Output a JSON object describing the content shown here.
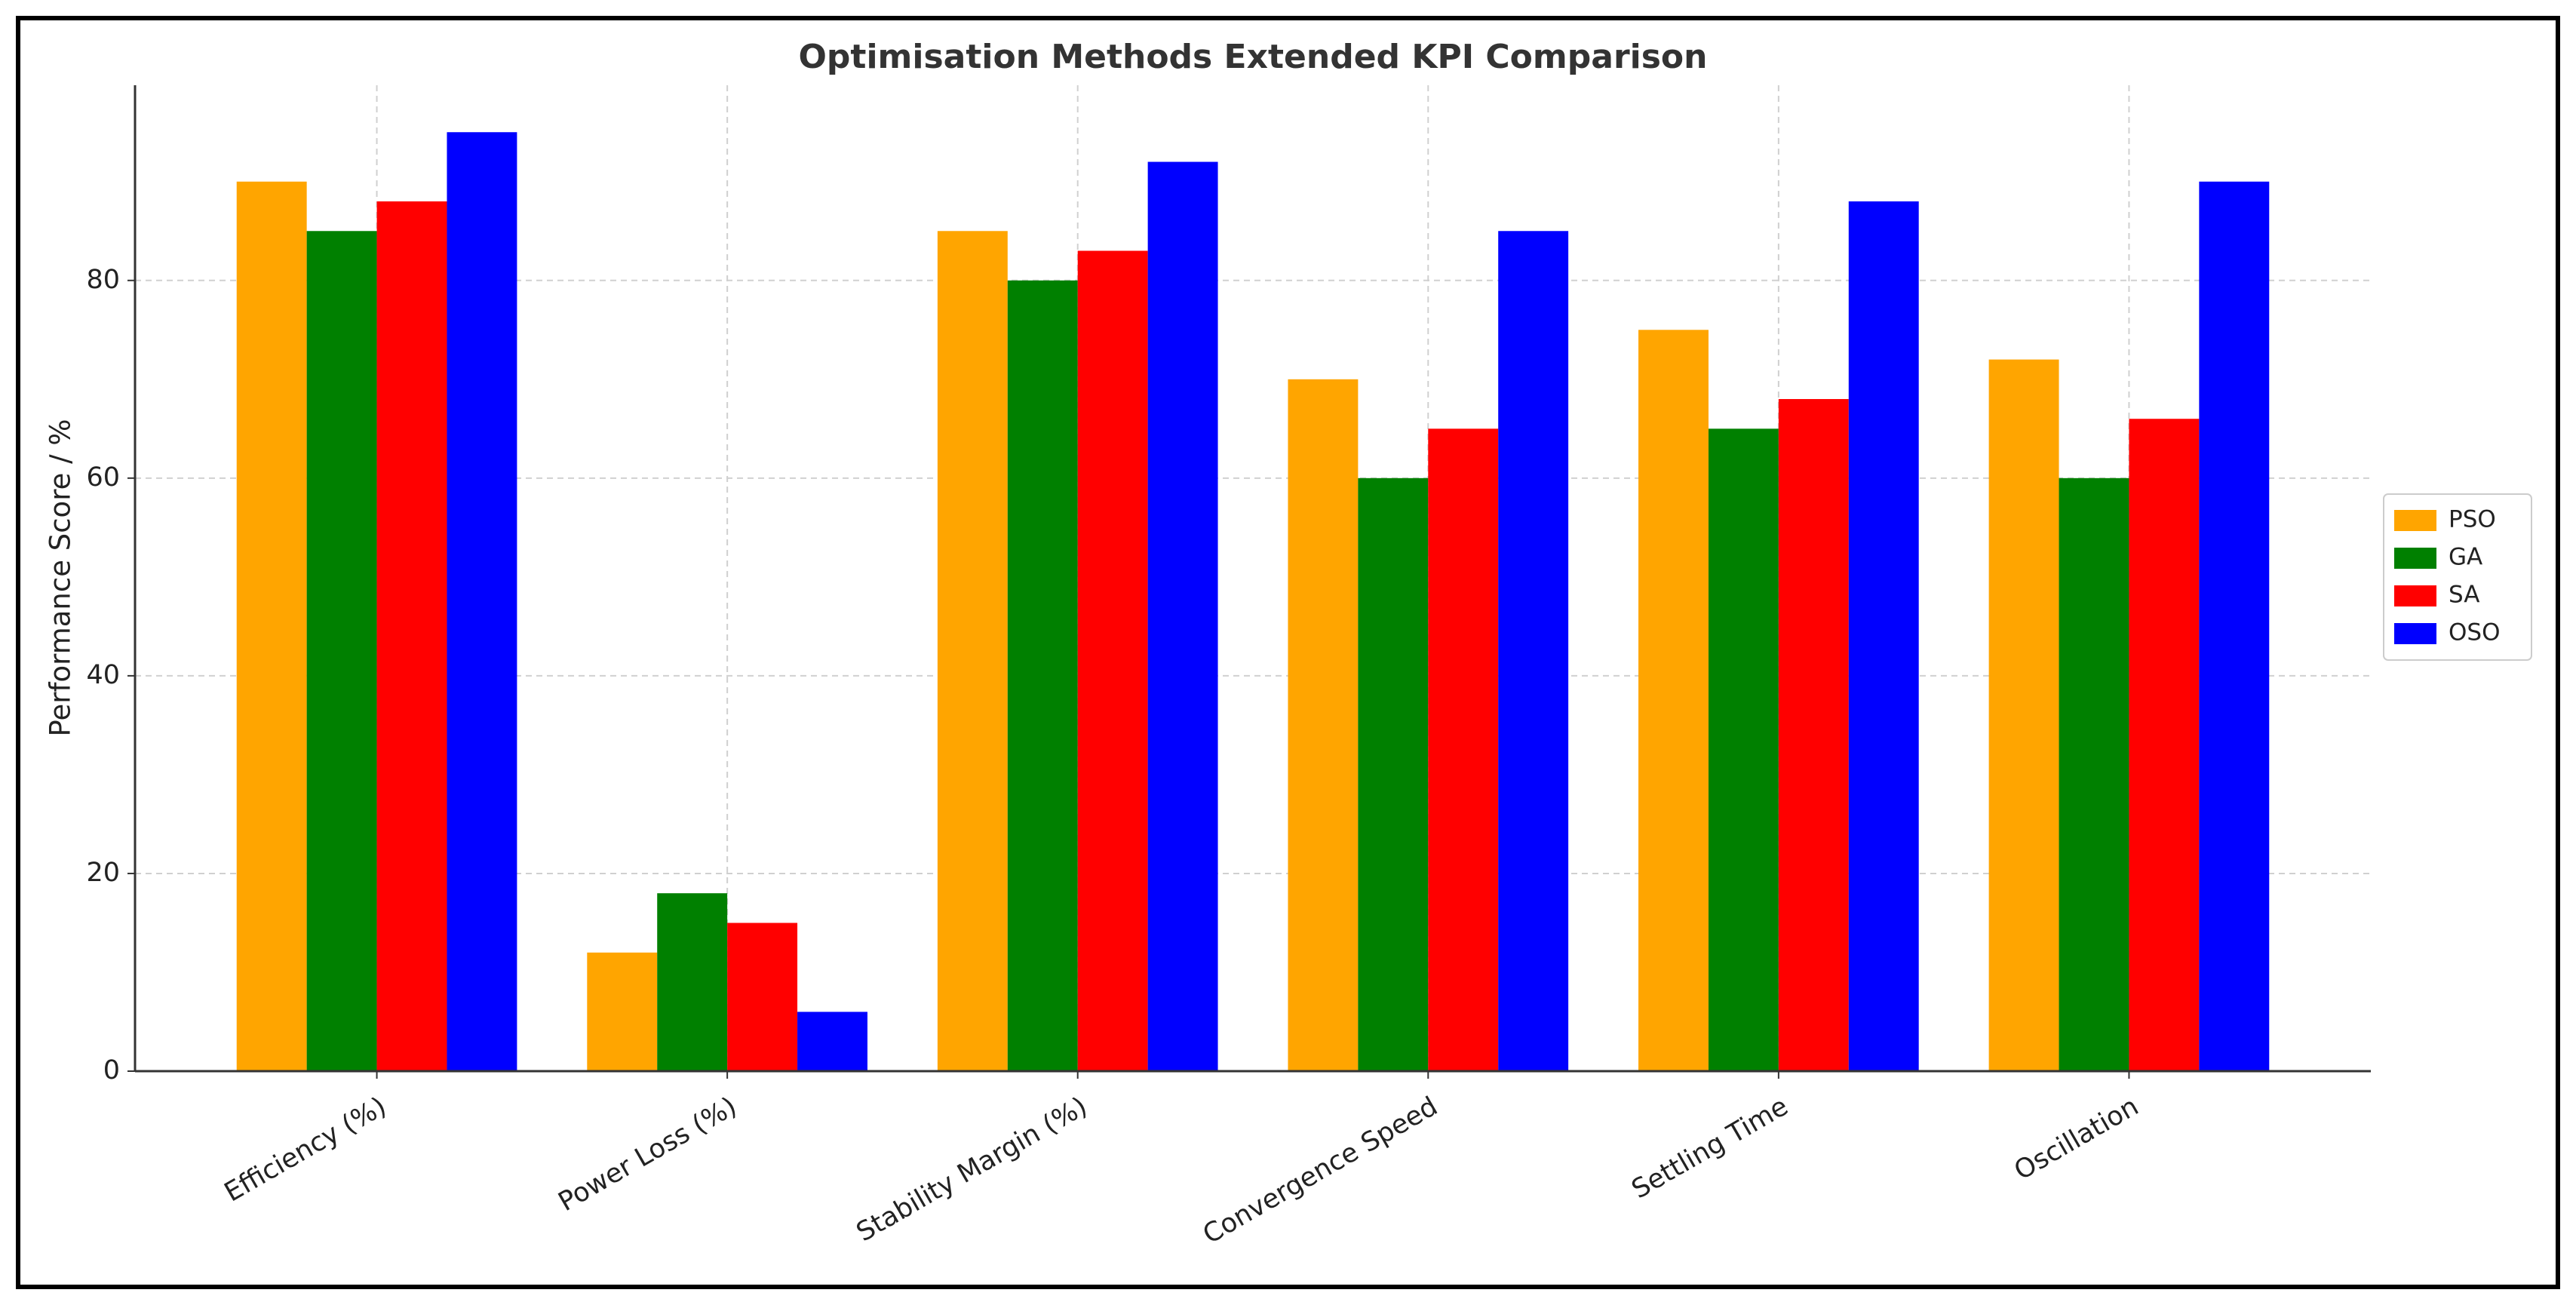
{
  "chart_data": {
    "type": "bar",
    "title": "Optimisation Methods Extended KPI Comparison",
    "y_label": "Performance Score / %",
    "categories": [
      "Efficiency (%)",
      "Power Loss (%)",
      "Stability Margin (%)",
      "Convergence Speed",
      "Settling Time",
      "Oscillation"
    ],
    "series": [
      {
        "name": "PSO",
        "color": "#ffa500",
        "values": [
          90,
          12,
          85,
          70,
          75,
          72
        ]
      },
      {
        "name": "GA",
        "color": "#008000",
        "values": [
          85,
          18,
          80,
          60,
          65,
          60
        ]
      },
      {
        "name": "SA",
        "color": "#ff0000",
        "values": [
          88,
          15,
          83,
          65,
          68,
          66
        ]
      },
      {
        "name": "OSO",
        "color": "#0000ff",
        "values": [
          95,
          6,
          92,
          85,
          88,
          90
        ]
      }
    ],
    "ylim": [
      0,
      99.75
    ],
    "yticks": [
      0,
      20,
      40,
      60,
      80
    ],
    "grid": true,
    "legend": "right"
  }
}
